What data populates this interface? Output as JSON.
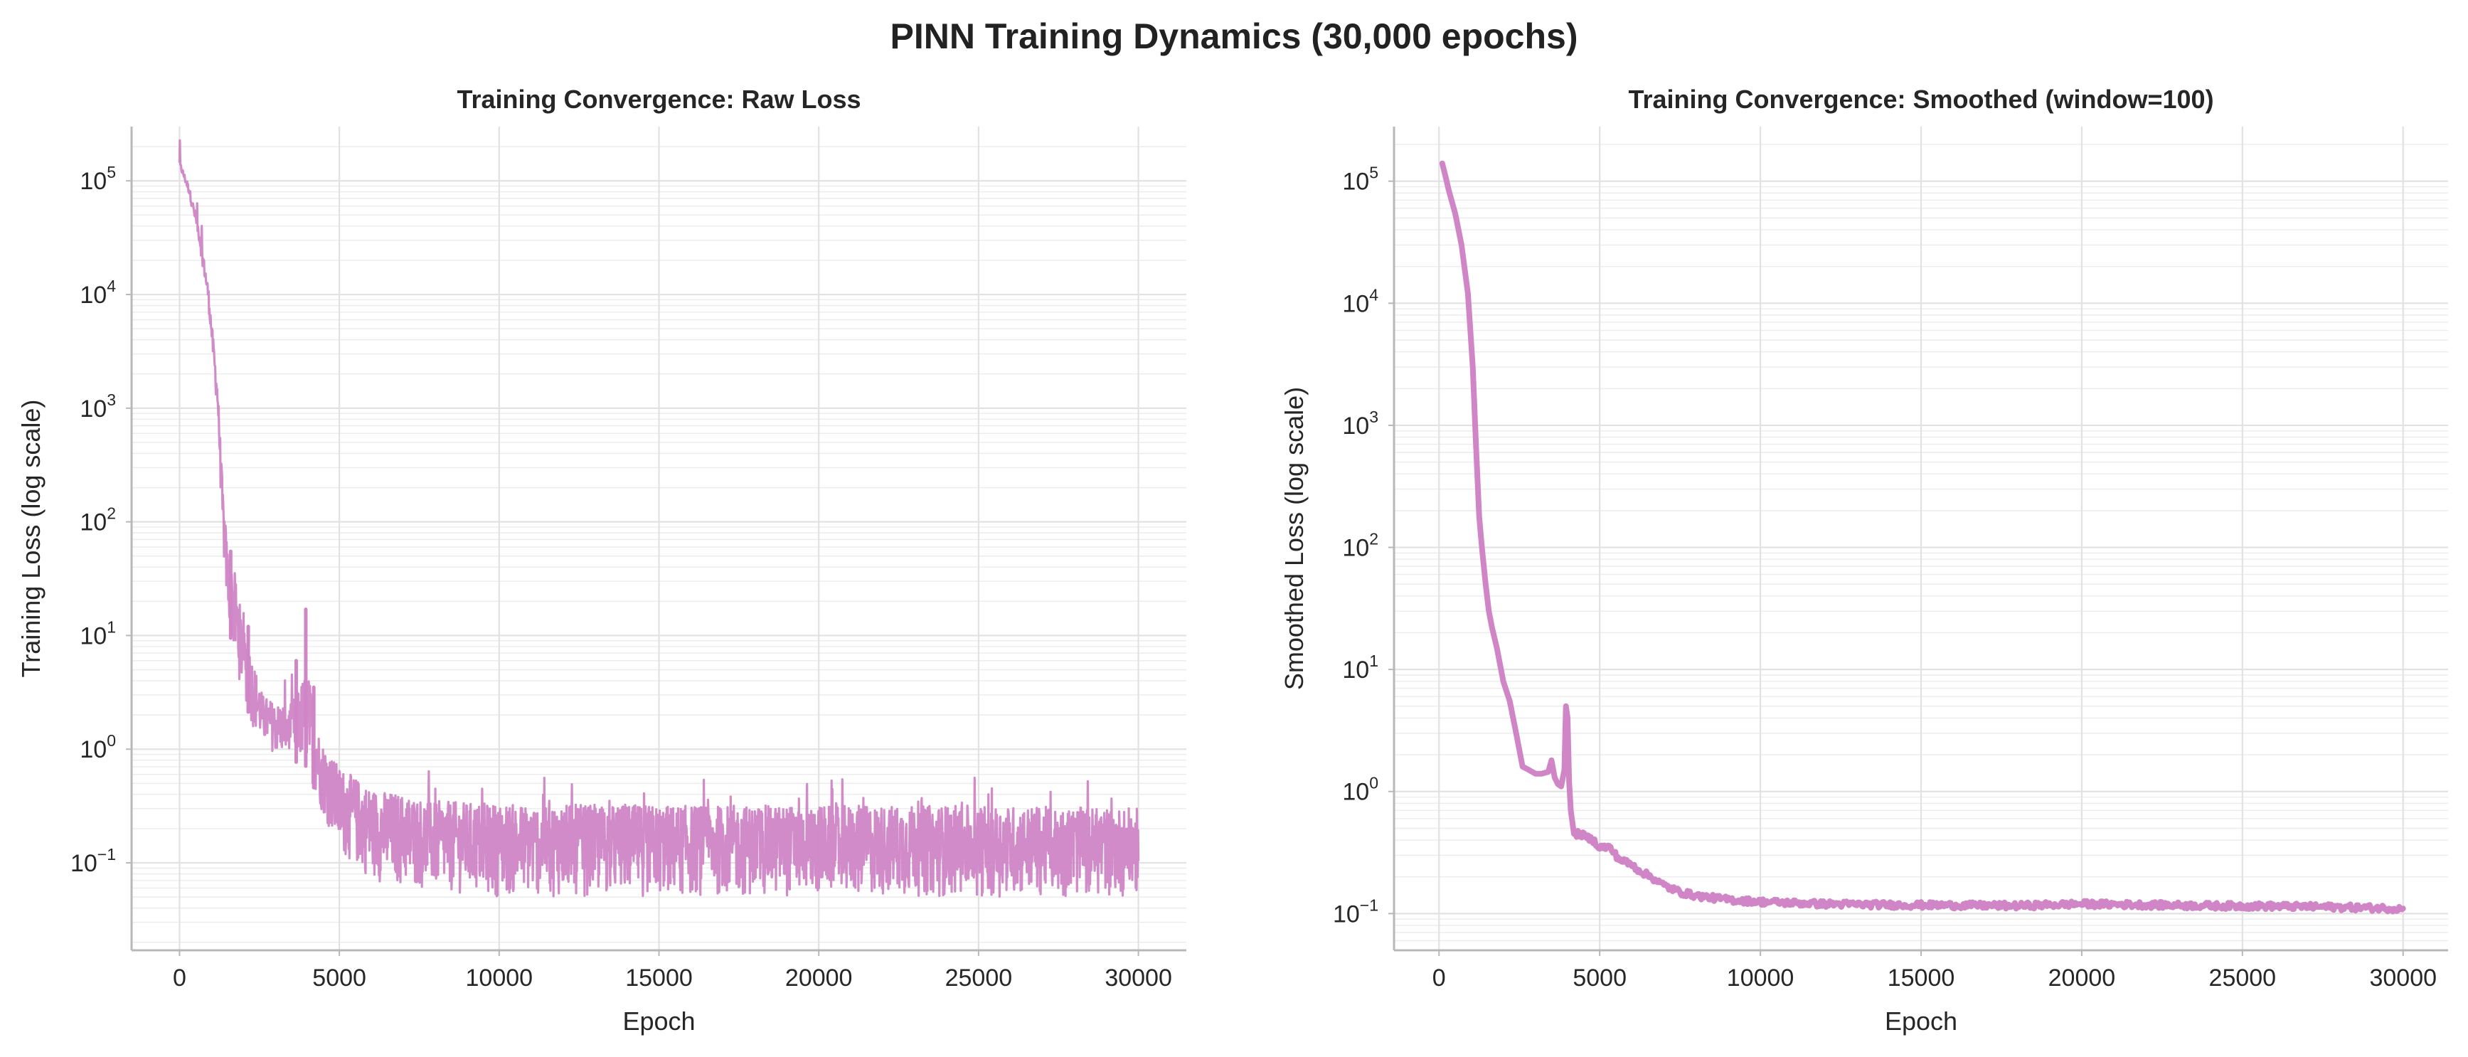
{
  "figure": {
    "suptitle": "PINN Training Dynamics (30,000 epochs)",
    "line_color": "#cf85c6"
  },
  "chart_data": [
    {
      "type": "line",
      "title": "Training Convergence: Raw Loss",
      "xlabel": "Epoch",
      "ylabel": "Training Loss (log scale)",
      "yscale": "log",
      "xlim": [
        -1500,
        31500
      ],
      "ylim": [
        0.017,
        300000
      ],
      "xticks": [
        0,
        5000,
        10000,
        15000,
        20000,
        25000,
        30000
      ],
      "yticks": [
        {
          "base": "10",
          "exp": "−1",
          "value": 0.1
        },
        {
          "base": "10",
          "exp": "0",
          "value": 1
        },
        {
          "base": "10",
          "exp": "1",
          "value": 10
        },
        {
          "base": "10",
          "exp": "2",
          "value": 100
        },
        {
          "base": "10",
          "exp": "3",
          "value": 1000
        },
        {
          "base": "10",
          "exp": "4",
          "value": 10000
        },
        {
          "base": "10",
          "exp": "5",
          "value": 100000
        }
      ],
      "grid": true,
      "series": [
        {
          "color": "#cf85c6",
          "style": "noisy",
          "x": [
            0,
            300,
            600,
            900,
            1200,
            1350,
            1500,
            1700,
            2000,
            2300,
            2600,
            3000,
            3500,
            4000,
            4400,
            5000,
            6000,
            7000,
            8000,
            10000,
            15000,
            20000,
            25000,
            30000
          ],
          "y_upper": [
            150000,
            90000,
            40000,
            12000,
            1500,
            200,
            60,
            40,
            12,
            6,
            3,
            2.5,
            2.5,
            5,
            1.2,
            0.7,
            0.45,
            0.4,
            0.35,
            0.33,
            0.32,
            0.32,
            0.32,
            0.3
          ],
          "y_lower": [
            130000,
            75000,
            30000,
            8000,
            800,
            60,
            15,
            6,
            3,
            1.5,
            1.1,
            0.9,
            0.8,
            0.7,
            0.3,
            0.12,
            0.07,
            0.06,
            0.055,
            0.05,
            0.05,
            0.05,
            0.05,
            0.05
          ],
          "spikes": [
            {
              "x": 1600,
              "y": 55
            },
            {
              "x": 2150,
              "y": 12
            },
            {
              "x": 3650,
              "y": 6
            },
            {
              "x": 3950,
              "y": 17
            },
            {
              "x": 4200,
              "y": 3.5
            }
          ]
        }
      ]
    },
    {
      "type": "line",
      "title": "Training Convergence: Smoothed (window=100)",
      "xlabel": "Epoch",
      "ylabel": "Smoothed Loss (log scale)",
      "yscale": "log",
      "xlim": [
        -1400,
        31400
      ],
      "ylim": [
        0.05,
        280000
      ],
      "xticks": [
        0,
        5000,
        10000,
        15000,
        20000,
        25000,
        30000
      ],
      "yticks": [
        {
          "base": "10",
          "exp": "−1",
          "value": 0.1
        },
        {
          "base": "10",
          "exp": "0",
          "value": 1
        },
        {
          "base": "10",
          "exp": "1",
          "value": 10
        },
        {
          "base": "10",
          "exp": "2",
          "value": 100
        },
        {
          "base": "10",
          "exp": "3",
          "value": 1000
        },
        {
          "base": "10",
          "exp": "4",
          "value": 10000
        },
        {
          "base": "10",
          "exp": "5",
          "value": 100000
        }
      ],
      "grid": true,
      "series": [
        {
          "color": "#cf85c6",
          "style": "smooth",
          "x": [
            100,
            200,
            300,
            500,
            700,
            900,
            1050,
            1150,
            1250,
            1350,
            1450,
            1550,
            1650,
            1800,
            2000,
            2200,
            2400,
            2600,
            2800,
            3000,
            3200,
            3400,
            3500,
            3600,
            3700,
            3800,
            3900,
            3950,
            4000,
            4050,
            4100,
            4200,
            4400,
            4600,
            4800,
            5000,
            5300,
            5600,
            6000,
            6300,
            6600,
            7000,
            7500,
            8000,
            9000,
            10000,
            12000,
            14000,
            16000,
            18000,
            20000,
            22000,
            24000,
            26000,
            28000,
            30000
          ],
          "y": [
            140000,
            110000,
            85000,
            55000,
            30000,
            12000,
            3000,
            700,
            180,
            90,
            50,
            30,
            22,
            15,
            8,
            5.5,
            3,
            1.6,
            1.5,
            1.4,
            1.4,
            1.45,
            1.8,
            1.3,
            1.15,
            1.1,
            1.5,
            5,
            4,
            1.2,
            0.7,
            0.45,
            0.45,
            0.42,
            0.4,
            0.35,
            0.35,
            0.28,
            0.25,
            0.22,
            0.2,
            0.17,
            0.15,
            0.14,
            0.13,
            0.125,
            0.12,
            0.118,
            0.117,
            0.116,
            0.12,
            0.118,
            0.116,
            0.115,
            0.113,
            0.11
          ]
        }
      ]
    }
  ]
}
